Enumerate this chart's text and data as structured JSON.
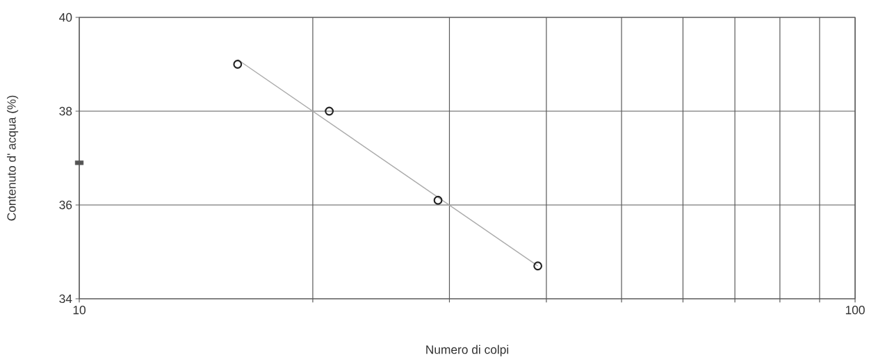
{
  "chart_data": {
    "type": "scatter",
    "xlabel": "Numero di colpi",
    "ylabel": "Contenuto d' acqua (%)",
    "log": "x",
    "grid": true,
    "xlim": [
      10,
      100
    ],
    "xticks": [
      10,
      {
        "value": 20,
        "label": null
      },
      {
        "value": 30,
        "label": null
      },
      {
        "value": 40,
        "label": null
      },
      {
        "value": 50,
        "label": null
      },
      {
        "value": 60,
        "label": null
      },
      {
        "value": 70,
        "label": null
      },
      {
        "value": 80,
        "label": null
      },
      {
        "value": 90,
        "label": null
      },
      100
    ],
    "ylim": [
      34,
      40
    ],
    "yticks": [
      34,
      36,
      38,
      40
    ],
    "series": [
      {
        "type": "line",
        "x": [
          16,
          39
        ],
        "values": [
          39.1,
          34.7
        ],
        "color": "#aaaaaa",
        "marker": "none",
        "line_style": "solid"
      },
      {
        "x": [
          16,
          21,
          29,
          39
        ],
        "values": [
          39.0,
          38.0,
          36.1,
          34.7
        ],
        "color": "#222222",
        "marker": "circle"
      },
      {
        "x": [
          10
        ],
        "values": [
          36.9
        ],
        "color": "#555555",
        "marker": "square"
      }
    ]
  }
}
